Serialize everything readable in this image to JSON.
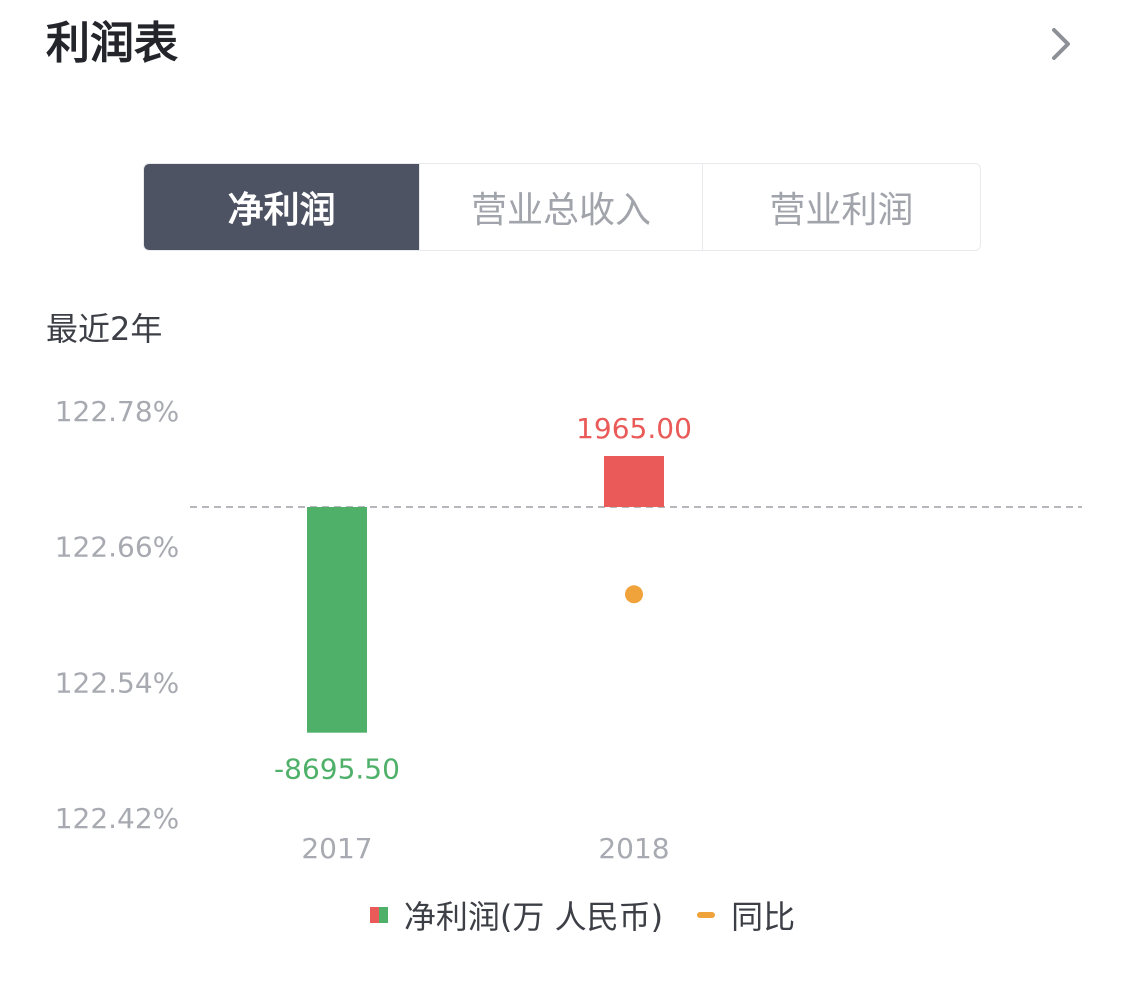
{
  "header": {
    "title": "利润表"
  },
  "tabs": [
    {
      "label": "净利润",
      "active": true
    },
    {
      "label": "营业总收入",
      "active": false
    },
    {
      "label": "营业利润",
      "active": false
    }
  ],
  "period_label": "最近2年",
  "colors": {
    "positive": "#e95a58",
    "negative": "#4fb06a",
    "yoy": "#f0a23b",
    "tab_active_bg": "#4d5363"
  },
  "chart_data": {
    "type": "bar",
    "categories": [
      "2017",
      "2018"
    ],
    "series": [
      {
        "name": "净利润(万 人民币)",
        "values": [
          -8695.5,
          1965.0
        ],
        "value_labels": [
          "-8695.50",
          "1965.00"
        ]
      },
      {
        "name": "同比",
        "values": [
          null,
          122.617
        ]
      }
    ],
    "right_axis": {
      "ticks": [
        "122.78%",
        "122.66%",
        "122.54%",
        "122.42%"
      ],
      "tick_values": [
        122.78,
        122.66,
        122.54,
        122.42
      ],
      "ylim": [
        122.42,
        122.78
      ]
    },
    "zero_line": "dashed"
  },
  "legend": {
    "bar_label": "净利润(万 人民币)",
    "line_label": "同比"
  }
}
